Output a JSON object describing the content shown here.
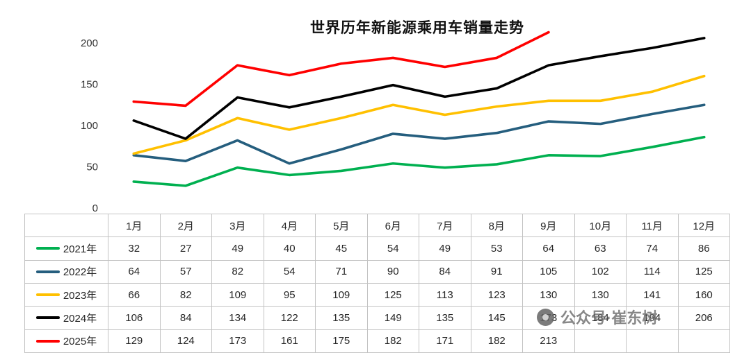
{
  "chart_data": {
    "type": "line",
    "title": "世界历年新能源乘用车销量走势",
    "categories": [
      "1月",
      "2月",
      "3月",
      "4月",
      "5月",
      "6月",
      "7月",
      "8月",
      "9月",
      "10月",
      "11月",
      "12月"
    ],
    "series": [
      {
        "name": "2021年",
        "color": "#00B050",
        "values": [
          32,
          27,
          49,
          40,
          45,
          54,
          49,
          53,
          64,
          63,
          74,
          86
        ]
      },
      {
        "name": "2022年",
        "color": "#255E7E",
        "values": [
          64,
          57,
          82,
          54,
          71,
          90,
          84,
          91,
          105,
          102,
          114,
          125
        ]
      },
      {
        "name": "2023年",
        "color": "#FFC000",
        "values": [
          66,
          82,
          109,
          95,
          109,
          125,
          113,
          123,
          130,
          130,
          141,
          160
        ]
      },
      {
        "name": "2024年",
        "color": "#000000",
        "values": [
          106,
          84,
          134,
          122,
          135,
          149,
          135,
          145,
          173,
          184,
          194,
          206
        ]
      },
      {
        "name": "2025年",
        "color": "#FF0000",
        "values": [
          129,
          124,
          173,
          161,
          175,
          182,
          171,
          182,
          213
        ]
      }
    ],
    "y_ticks": [
      0,
      50,
      100,
      150,
      200
    ],
    "ylim": [
      0,
      210
    ],
    "xlabel": "",
    "ylabel": "",
    "grid": false,
    "legend_position": "table-left-column"
  },
  "watermark": {
    "icon": "camera-icon",
    "text": "公众号·崔东树"
  }
}
